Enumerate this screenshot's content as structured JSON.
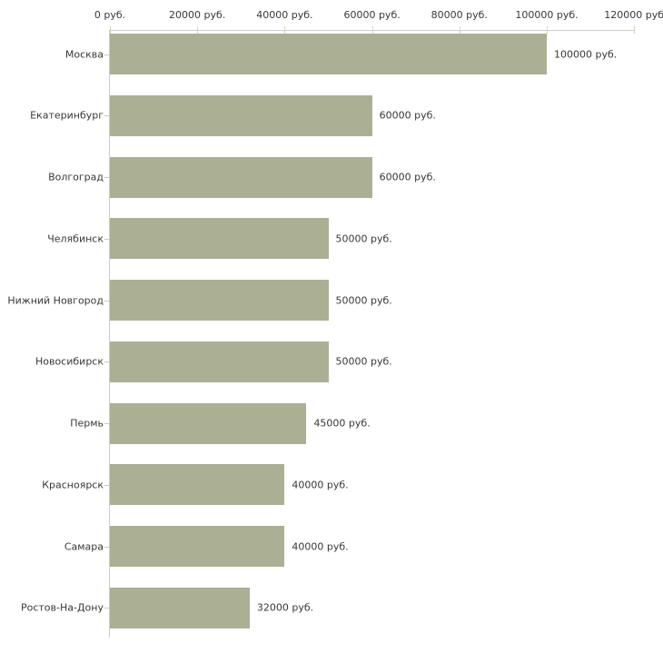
{
  "chart_data": {
    "type": "bar",
    "orientation": "horizontal",
    "title": "",
    "xlabel": "",
    "ylabel": "",
    "xlim": [
      0,
      120000
    ],
    "grid": false,
    "legend": false,
    "categories": [
      "Москва",
      "Екатеринбург",
      "Волгоград",
      "Челябинск",
      "Нижний Новгород",
      "Новосибирск",
      "Пермь",
      "Красноярск",
      "Самара",
      "Ростов-На-Дону"
    ],
    "values": [
      100000,
      60000,
      60000,
      50000,
      50000,
      50000,
      45000,
      40000,
      40000,
      32000
    ],
    "bar_value_labels": [
      "100000 руб.",
      "60000 руб.",
      "60000 руб.",
      "50000 руб.",
      "50000 руб.",
      "50000 руб.",
      "45000 руб.",
      "40000 руб.",
      "40000 руб.",
      "32000 руб."
    ],
    "x_tick_values": [
      0,
      20000,
      40000,
      60000,
      80000,
      100000,
      120000
    ],
    "x_tick_labels": [
      "0 руб.",
      "20000 руб.",
      "40000 руб.",
      "60000 руб.",
      "80000 руб.",
      "100000 руб.",
      "120000 руб"
    ],
    "colors": {
      "bar_fill": "#abb095",
      "axis_line": "#cccccc",
      "tick_mark": "#d4d4b8",
      "text": "#383838",
      "background": "#ffffff"
    }
  }
}
